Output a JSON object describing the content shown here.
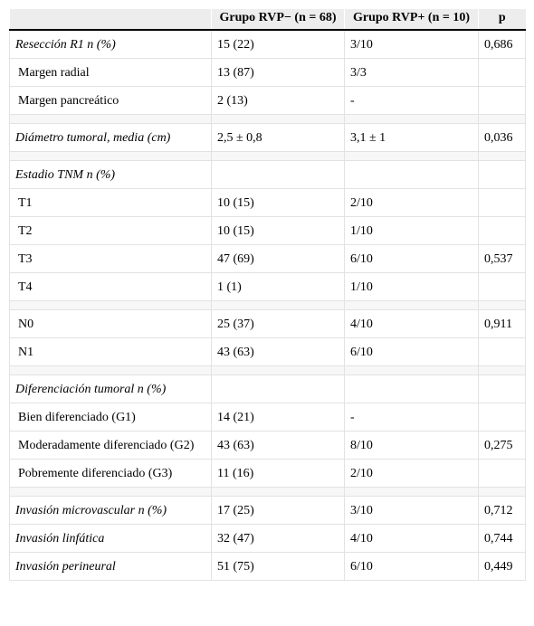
{
  "header": {
    "col1": "",
    "col2": "Grupo RVP− (n = 68)",
    "col3": "Grupo RVP+ (n = 10)",
    "col4": "p"
  },
  "rows": [
    {
      "type": "row",
      "label": "Resección R1 n (%)",
      "italic": true,
      "sub": false,
      "c2": "15 (22)",
      "c3": "3/10",
      "c4": "0,686"
    },
    {
      "type": "row",
      "label": "Margen radial",
      "italic": false,
      "sub": true,
      "c2": "13 (87)",
      "c3": "3/3",
      "c4": ""
    },
    {
      "type": "row",
      "label": "Margen pancreático",
      "italic": false,
      "sub": true,
      "c2": "2 (13)",
      "c3": "-",
      "c4": ""
    },
    {
      "type": "spacer"
    },
    {
      "type": "row",
      "label": "Diámetro tumoral, media (cm)",
      "italic": true,
      "sub": false,
      "c2": "2,5 ± 0,8",
      "c3": "3,1 ± 1",
      "c4": "0,036"
    },
    {
      "type": "spacer"
    },
    {
      "type": "row",
      "label": "Estadio TNM n (%)",
      "italic": true,
      "sub": false,
      "c2": "",
      "c3": "",
      "c4": ""
    },
    {
      "type": "row",
      "label": "T1",
      "italic": false,
      "sub": true,
      "c2": "10 (15)",
      "c3": "2/10",
      "c4": ""
    },
    {
      "type": "row",
      "label": "T2",
      "italic": false,
      "sub": true,
      "c2": "10 (15)",
      "c3": "1/10",
      "c4": ""
    },
    {
      "type": "row",
      "label": "T3",
      "italic": false,
      "sub": true,
      "c2": "47 (69)",
      "c3": "6/10",
      "c4": "0,537"
    },
    {
      "type": "row",
      "label": "T4",
      "italic": false,
      "sub": true,
      "c2": "1 (1)",
      "c3": "1/10",
      "c4": ""
    },
    {
      "type": "spacer"
    },
    {
      "type": "row",
      "label": "N0",
      "italic": false,
      "sub": true,
      "c2": "25 (37)",
      "c3": "4/10",
      "c4": "0,911"
    },
    {
      "type": "row",
      "label": "N1",
      "italic": false,
      "sub": true,
      "c2": "43 (63)",
      "c3": "6/10",
      "c4": ""
    },
    {
      "type": "spacer"
    },
    {
      "type": "row",
      "label": "Diferenciación tumoral n (%)",
      "italic": true,
      "sub": false,
      "c2": "",
      "c3": "",
      "c4": ""
    },
    {
      "type": "row",
      "label": "Bien diferenciado (G1)",
      "italic": false,
      "sub": true,
      "c2": "14 (21)",
      "c3": "-",
      "c4": ""
    },
    {
      "type": "row",
      "label": "Moderadamente diferenciado (G2)",
      "italic": false,
      "sub": true,
      "c2": "43 (63)",
      "c3": "8/10",
      "c4": "0,275"
    },
    {
      "type": "row",
      "label": "Pobremente diferenciado (G3)",
      "italic": false,
      "sub": true,
      "c2": "11 (16)",
      "c3": "2/10",
      "c4": ""
    },
    {
      "type": "spacer"
    },
    {
      "type": "row",
      "label": "Invasión microvascular n (%)",
      "italic": true,
      "sub": false,
      "c2": "17 (25)",
      "c3": "3/10",
      "c4": "0,712"
    },
    {
      "type": "row",
      "label": "Invasión linfática",
      "italic": true,
      "sub": false,
      "c2": "32 (47)",
      "c3": "4/10",
      "c4": "0,744"
    },
    {
      "type": "row",
      "label": "Invasión perineural",
      "italic": true,
      "sub": false,
      "c2": "51 (75)",
      "c3": "6/10",
      "c4": "0,449"
    }
  ]
}
